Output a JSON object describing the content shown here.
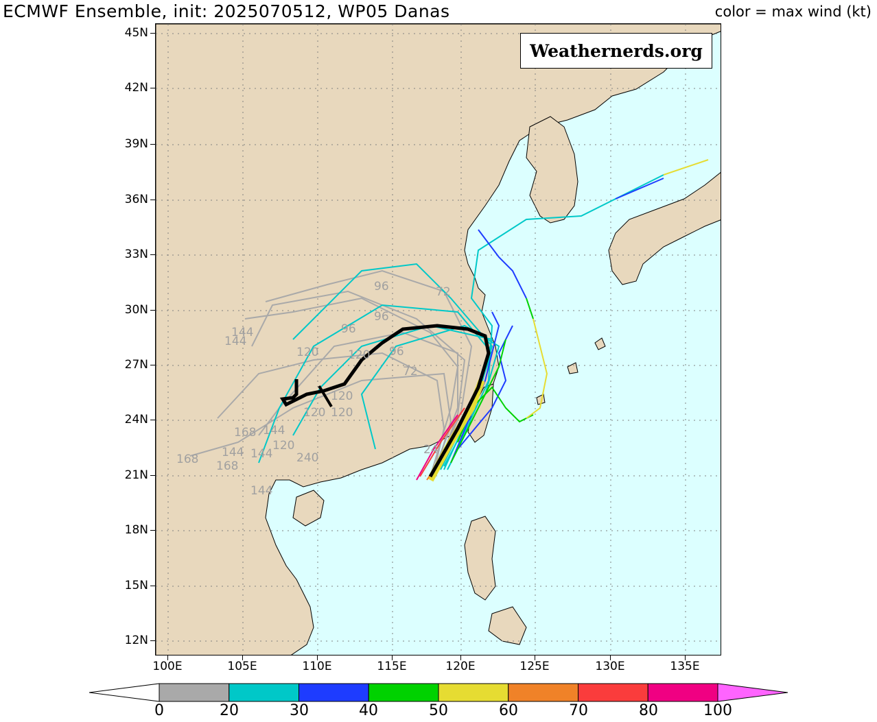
{
  "header": {
    "title": "ECMWF Ensemble, init: 2025070512, WP05 Danas",
    "legend_title": "color = max wind (kt)"
  },
  "watermark": "Weathernerds.org",
  "axes": {
    "lat_labels": [
      "45N",
      "42N",
      "39N",
      "36N",
      "33N",
      "30N",
      "27N",
      "24N",
      "21N",
      "18N",
      "15N",
      "12N"
    ],
    "lon_labels": [
      "100E",
      "105E",
      "110E",
      "115E",
      "120E",
      "125E",
      "130E",
      "135E"
    ]
  },
  "colorbar": {
    "labels": [
      "0",
      "20",
      "30",
      "40",
      "50",
      "60",
      "70",
      "80",
      "100"
    ],
    "colors": [
      "#a9a9a9",
      "#00c8c8",
      "#1e3cff",
      "#00d200",
      "#e6dc32",
      "#f08228",
      "#fa3c3c",
      "#f00082",
      "#ff64ff"
    ]
  },
  "map": {
    "land_color": "#e8d8bd",
    "ocean_color": "#dcffff",
    "grid_color": "#808080",
    "mean_track_color": "#000000",
    "hour_labels": [
      "96",
      "72",
      "96",
      "96",
      "144",
      "144",
      "120",
      "120",
      "96",
      "72",
      "120",
      "120",
      "168",
      "144",
      "144",
      "120",
      "168",
      "168",
      "144",
      "240",
      "144",
      "120",
      "24"
    ]
  }
}
